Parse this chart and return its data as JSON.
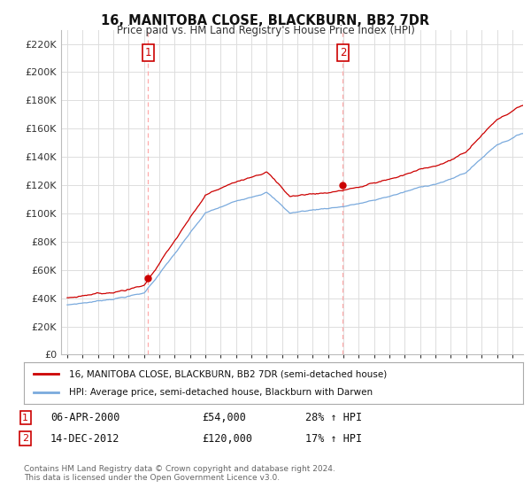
{
  "title": "16, MANITOBA CLOSE, BLACKBURN, BB2 7DR",
  "subtitle": "Price paid vs. HM Land Registry's House Price Index (HPI)",
  "legend_label1": "16, MANITOBA CLOSE, BLACKBURN, BB2 7DR (semi-detached house)",
  "legend_label2": "HPI: Average price, semi-detached house, Blackburn with Darwen",
  "annotation1_label": "1",
  "annotation1_date": "06-APR-2000",
  "annotation1_price": "£54,000",
  "annotation1_hpi": "28% ↑ HPI",
  "annotation2_label": "2",
  "annotation2_date": "14-DEC-2012",
  "annotation2_price": "£120,000",
  "annotation2_hpi": "17% ↑ HPI",
  "footer": "Contains HM Land Registry data © Crown copyright and database right 2024.\nThis data is licensed under the Open Government Licence v3.0.",
  "line1_color": "#cc0000",
  "line2_color": "#7aaadd",
  "vline_color": "#ffaaaa",
  "marker1_color": "#cc0000",
  "marker2_color": "#cc0000",
  "annotation_box_color": "#cc0000",
  "ylim": [
    0,
    230000
  ],
  "yticks": [
    0,
    20000,
    40000,
    60000,
    80000,
    100000,
    120000,
    140000,
    160000,
    180000,
    200000,
    220000
  ],
  "bg_color": "#ffffff",
  "grid_color": "#dddddd",
  "purchase1_year": 2000.27,
  "purchase1_value": 54000,
  "purchase2_year": 2012.96,
  "purchase2_value": 120000
}
